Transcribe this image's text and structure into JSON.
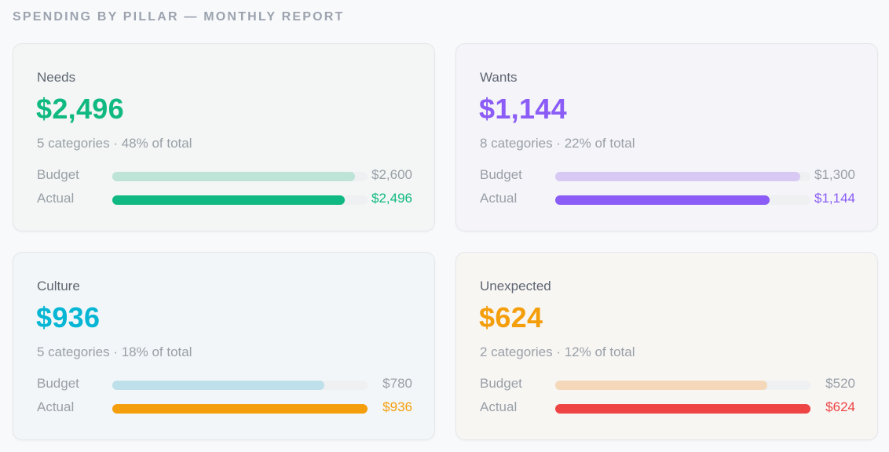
{
  "header": {
    "title": "SPENDING BY PILLAR — MONTHLY REPORT"
  },
  "cards": [
    {
      "name": "Needs",
      "amount": "$2,496",
      "meta": "5 categories · 48% of total",
      "accent": "#10b981",
      "budget": {
        "label": "Budget",
        "value": "$2,600",
        "fraction": 0.95,
        "color": "#bde4d6"
      },
      "actual": {
        "label": "Actual",
        "value": "$2,496",
        "fraction": 0.91,
        "color": "#10b981",
        "value_color": "#10b981"
      }
    },
    {
      "name": "Wants",
      "amount": "$1,144",
      "meta": "8 categories · 22% of total",
      "accent": "#8b5cf6",
      "budget": {
        "label": "Budget",
        "value": "$1,300",
        "fraction": 0.96,
        "color": "#d7c9f4"
      },
      "actual": {
        "label": "Actual",
        "value": "$1,144",
        "fraction": 0.84,
        "color": "#8b5cf6",
        "value_color": "#8b5cf6"
      }
    },
    {
      "name": "Culture",
      "amount": "$936",
      "meta": "5 categories · 18% of total",
      "accent": "#06b6d4",
      "budget": {
        "label": "Budget",
        "value": "$780",
        "fraction": 0.83,
        "color": "#bde0ea"
      },
      "actual": {
        "label": "Actual",
        "value": "$936",
        "fraction": 1.0,
        "color": "#f59e0b",
        "value_color": "#f59e0b"
      }
    },
    {
      "name": "Unexpected",
      "amount": "$624",
      "meta": "2 categories · 12% of total",
      "accent": "#f59e0b",
      "budget": {
        "label": "Budget",
        "value": "$520",
        "fraction": 0.83,
        "color": "#f4d8b9"
      },
      "actual": {
        "label": "Actual",
        "value": "$624",
        "fraction": 1.0,
        "color": "#ef4444",
        "value_color": "#ef4444"
      }
    }
  ]
}
